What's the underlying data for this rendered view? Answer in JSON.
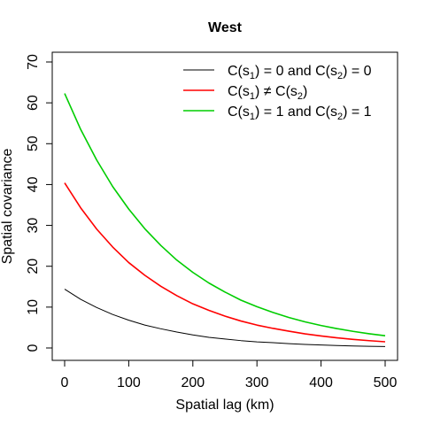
{
  "chart_data": {
    "type": "line",
    "title": "West",
    "xlabel": "Spatial lag (km)",
    "ylabel": "Spatial covariance",
    "xlim": [
      0,
      500
    ],
    "ylim": [
      0,
      70
    ],
    "xticks": [
      0,
      100,
      200,
      300,
      400,
      500
    ],
    "yticks": [
      0,
      10,
      20,
      30,
      40,
      50,
      60,
      70
    ],
    "grid": false,
    "legend_position": "top-right",
    "x": [
      0,
      25,
      50,
      75,
      100,
      125,
      150,
      175,
      200,
      225,
      250,
      275,
      300,
      325,
      350,
      375,
      400,
      425,
      450,
      475,
      500
    ],
    "series": [
      {
        "name": "C(s1) = 0 and C(s2) = 0",
        "legend": {
          "pre": "C(s",
          "sub1": "1",
          "mid": ") = 0 and C(s",
          "sub2": "2",
          "post": ") = 0"
        },
        "color": "#000000",
        "values": [
          14.4,
          11.9,
          9.9,
          8.2,
          6.8,
          5.6,
          4.7,
          3.9,
          3.2,
          2.6,
          2.2,
          1.8,
          1.5,
          1.3,
          1.05,
          0.87,
          0.72,
          0.6,
          0.5,
          0.41,
          0.34
        ]
      },
      {
        "name": "C(s1) ≠ C(s2)",
        "legend": {
          "pre": "C(s",
          "sub1": "1",
          "mid": ") ≠ C(s",
          "sub2": "2",
          "post": ")"
        },
        "color": "#ff0000",
        "values": [
          40.4,
          34.3,
          29.1,
          24.7,
          20.9,
          17.8,
          15.1,
          12.8,
          10.8,
          9.2,
          7.8,
          6.6,
          5.6,
          4.8,
          4.1,
          3.45,
          2.93,
          2.48,
          2.1,
          1.79,
          1.52
        ]
      },
      {
        "name": "C(s1) = 1 and C(s2) = 1",
        "legend": {
          "pre": "C(s",
          "sub1": "1",
          "mid": ") = 1 and C(s",
          "sub2": "2",
          "post": ") = 1"
        },
        "color": "#00cd00",
        "values": [
          62.3,
          53.5,
          46.0,
          39.5,
          34.0,
          29.2,
          25.1,
          21.5,
          18.5,
          15.9,
          13.7,
          11.7,
          10.1,
          8.7,
          7.45,
          6.4,
          5.5,
          4.73,
          4.06,
          3.49,
          3.0
        ]
      }
    ]
  }
}
